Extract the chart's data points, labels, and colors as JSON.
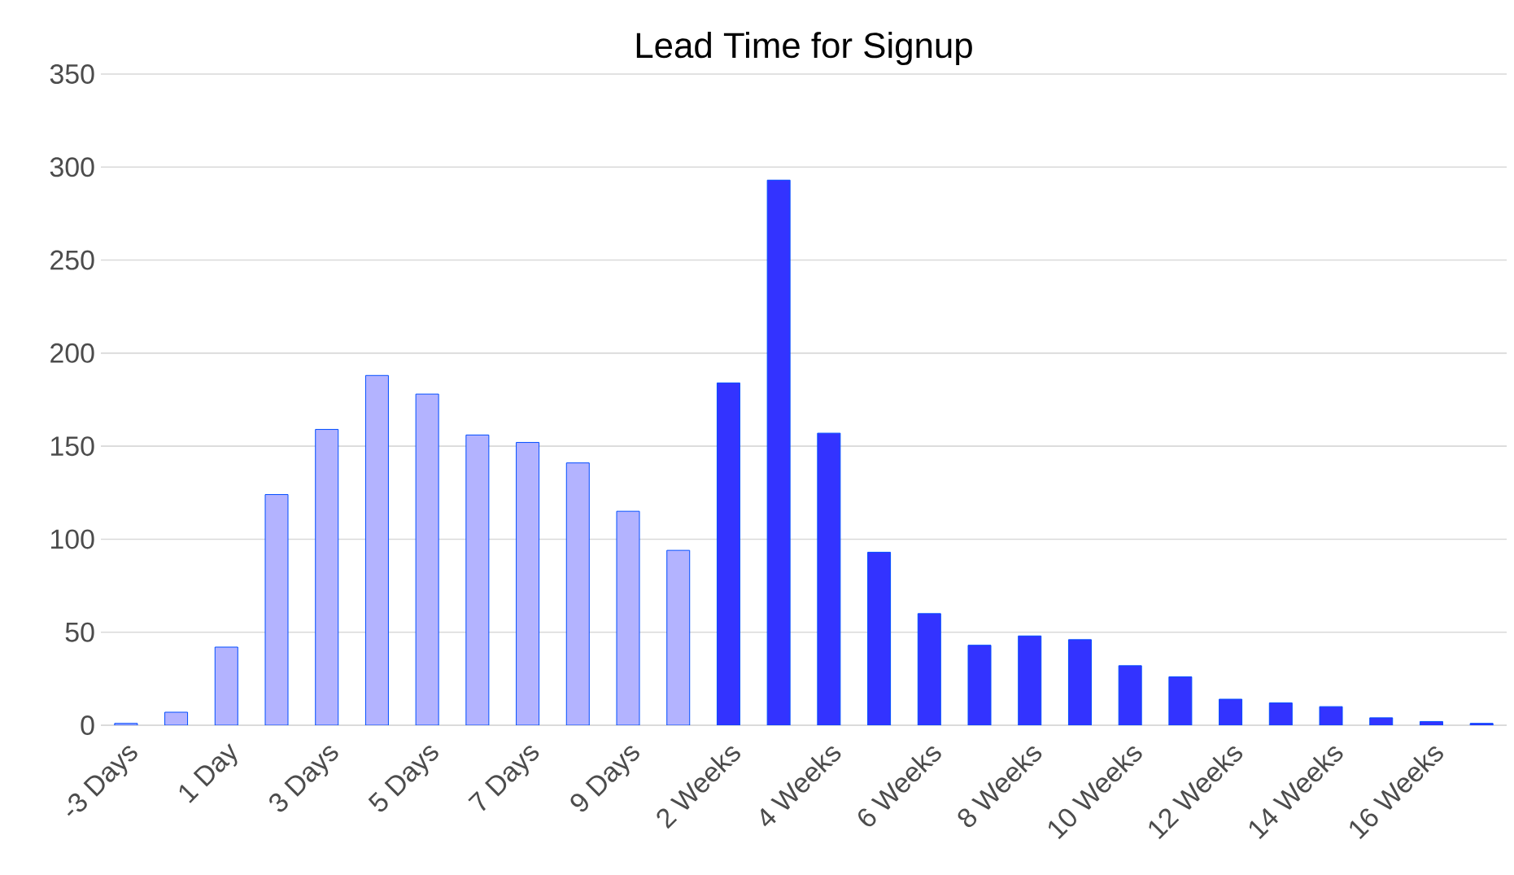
{
  "chart_data": {
    "type": "bar",
    "title": "Lead Time for Signup",
    "categories": [
      "-3 Days",
      null,
      "1 Day",
      null,
      "3 Days",
      null,
      "5 Days",
      null,
      "7 Days",
      null,
      "9 Days",
      null,
      "2 Weeks",
      null,
      "4 Weeks",
      null,
      "6 Weeks",
      null,
      "8 Weeks",
      null,
      "10 Weeks",
      null,
      "12 Weeks",
      null,
      "14 Weeks",
      null,
      "16 Weeks",
      null
    ],
    "values": [
      1,
      7,
      42,
      124,
      159,
      188,
      178,
      156,
      152,
      141,
      115,
      94,
      184,
      293,
      157,
      93,
      60,
      43,
      48,
      46,
      32,
      26,
      14,
      12,
      10,
      4,
      2,
      1
    ],
    "colors": [
      "#b3b3ff",
      "#b3b3ff",
      "#b3b3ff",
      "#b3b3ff",
      "#b3b3ff",
      "#b3b3ff",
      "#b3b3ff",
      "#b3b3ff",
      "#b3b3ff",
      "#b3b3ff",
      "#b3b3ff",
      "#b3b3ff",
      "#3333ff",
      "#3333ff",
      "#3333ff",
      "#3333ff",
      "#3333ff",
      "#3333ff",
      "#3333ff",
      "#3333ff",
      "#3333ff",
      "#3333ff",
      "#3333ff",
      "#3333ff",
      "#3333ff",
      "#3333ff",
      "#3333ff",
      "#3333ff"
    ],
    "ylim": [
      0,
      350
    ],
    "yticks": [
      0,
      50,
      100,
      150,
      200,
      250,
      300,
      350
    ],
    "grid": "y"
  }
}
